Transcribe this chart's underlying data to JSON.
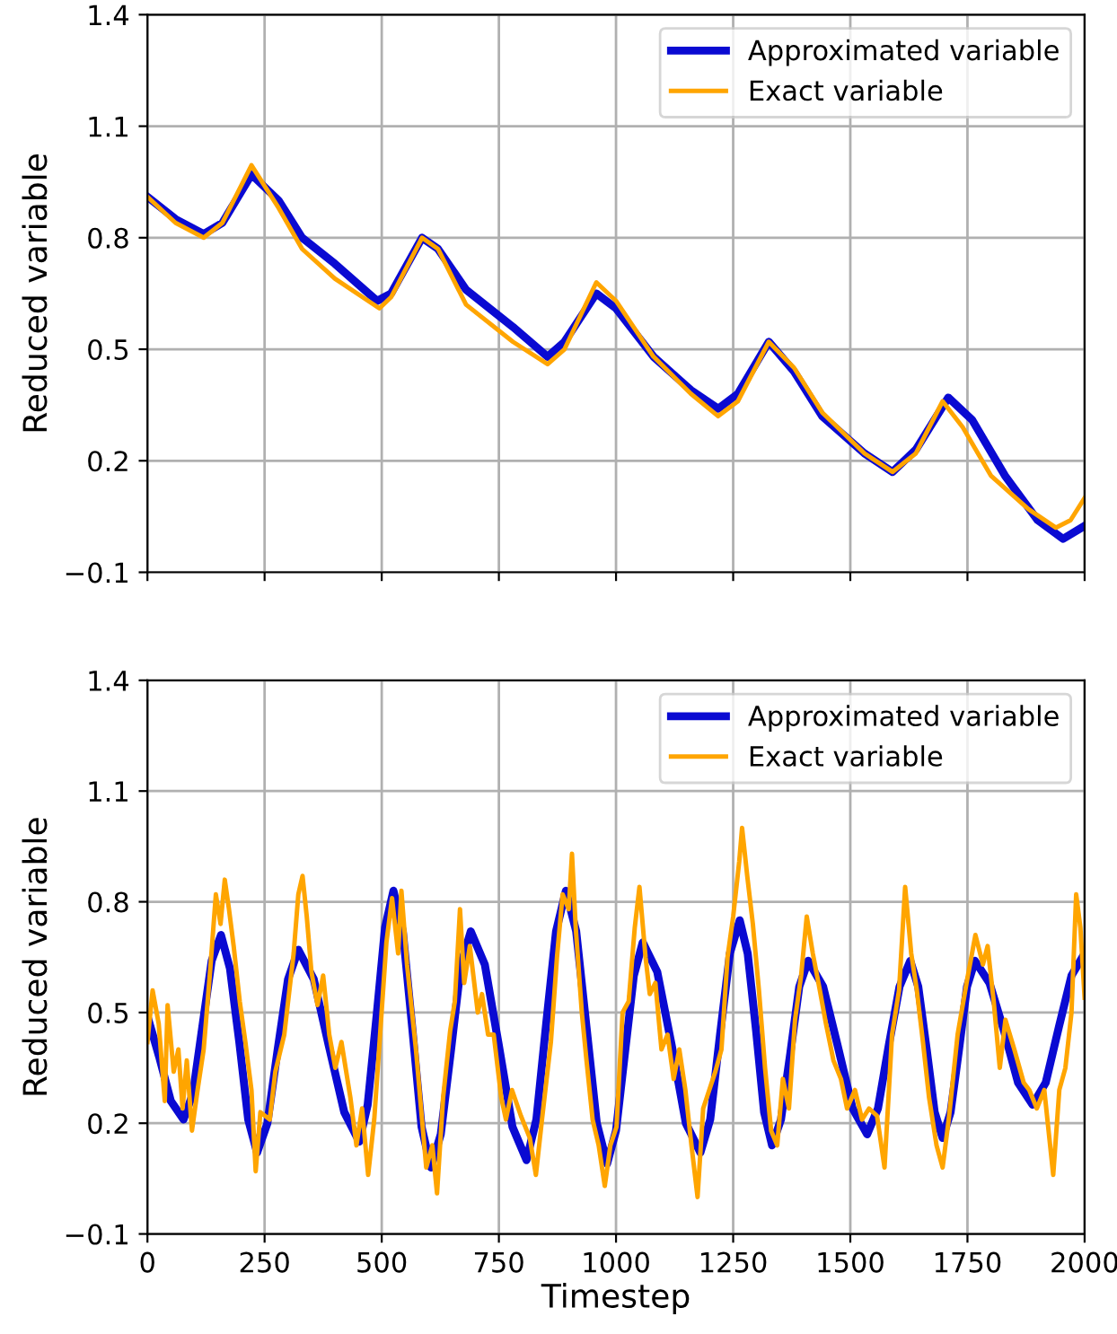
{
  "chart_data": [
    {
      "type": "line",
      "ylabel": "Reduced variable",
      "xlim": [
        0,
        2000
      ],
      "ylim": [
        -0.1,
        1.4
      ],
      "xticks": [
        0,
        250,
        500,
        750,
        1000,
        1250,
        1500,
        1750,
        2000
      ],
      "yticks": [
        {
          "value": -0.1,
          "label": "−0.1"
        },
        0.2,
        0.5,
        0.8,
        1.1,
        1.4
      ],
      "grid": true,
      "legend": "top right",
      "tick_labels": "y",
      "series": [
        {
          "name": "Approximated variable",
          "color": "#0a0ad2",
          "x": [
            0,
            60,
            120,
            160,
            222,
            280,
            330,
            400,
            490,
            520,
            586,
            620,
            680,
            780,
            854,
            890,
            958,
            1000,
            1080,
            1160,
            1218,
            1260,
            1326,
            1380,
            1440,
            1530,
            1590,
            1640,
            1709,
            1760,
            1830,
            1900,
            1954,
            2000
          ],
          "values": [
            0.91,
            0.85,
            0.81,
            0.84,
            0.97,
            0.9,
            0.8,
            0.73,
            0.63,
            0.65,
            0.8,
            0.77,
            0.66,
            0.56,
            0.48,
            0.52,
            0.65,
            0.61,
            0.48,
            0.39,
            0.34,
            0.38,
            0.52,
            0.44,
            0.32,
            0.22,
            0.17,
            0.23,
            0.37,
            0.31,
            0.16,
            0.04,
            -0.01,
            0.025
          ]
        },
        {
          "name": "Exact variable",
          "color": "#ffa500",
          "x": [
            0,
            60,
            120,
            160,
            222,
            280,
            330,
            400,
            495,
            520,
            586,
            620,
            680,
            780,
            854,
            890,
            958,
            1000,
            1080,
            1160,
            1218,
            1260,
            1326,
            1380,
            1440,
            1530,
            1590,
            1640,
            1697,
            1740,
            1800,
            1880,
            1939,
            1970,
            2000
          ],
          "values": [
            0.91,
            0.84,
            0.8,
            0.84,
            0.995,
            0.88,
            0.77,
            0.69,
            0.61,
            0.64,
            0.8,
            0.77,
            0.62,
            0.52,
            0.46,
            0.5,
            0.68,
            0.63,
            0.48,
            0.38,
            0.32,
            0.36,
            0.52,
            0.45,
            0.33,
            0.22,
            0.17,
            0.22,
            0.36,
            0.29,
            0.16,
            0.07,
            0.02,
            0.04,
            0.1
          ]
        }
      ]
    },
    {
      "type": "line",
      "xlabel": "Timestep",
      "ylabel": "Reduced variable",
      "xlim": [
        0,
        2000
      ],
      "ylim": [
        -0.1,
        1.4
      ],
      "xticks": [
        0,
        250,
        500,
        750,
        1000,
        1250,
        1500,
        1750,
        2000
      ],
      "yticks": [
        {
          "value": -0.1,
          "label": "−0.1"
        },
        0.2,
        0.5,
        0.8,
        1.1,
        1.4
      ],
      "grid": true,
      "legend": "top right",
      "series": [
        {
          "name": "Approximated variable",
          "color": "#0a0ad2",
          "x": [
            0,
            25,
            50,
            77,
            97,
            117,
            137,
            157,
            176,
            196,
            215,
            234,
            256,
            278,
            300,
            322,
            355,
            387,
            420,
            452,
            470,
            489,
            507,
            525,
            545,
            565,
            585,
            605,
            626,
            648,
            669,
            690,
            720,
            750,
            779,
            809,
            830,
            851,
            872,
            893,
            915,
            937,
            959,
            981,
            1000,
            1019,
            1038,
            1057,
            1088,
            1119,
            1149,
            1180,
            1201,
            1222,
            1243,
            1264,
            1281,
            1299,
            1316,
            1333,
            1352,
            1372,
            1391,
            1410,
            1442,
            1473,
            1505,
            1536,
            1559,
            1582,
            1605,
            1628,
            1645,
            1663,
            1680,
            1697,
            1714,
            1732,
            1749,
            1766,
            1797,
            1828,
            1858,
            1889,
            1917,
            1945,
            1972,
            2000
          ],
          "values": [
            0.49,
            0.38,
            0.26,
            0.21,
            0.28,
            0.46,
            0.64,
            0.71,
            0.62,
            0.42,
            0.21,
            0.12,
            0.2,
            0.4,
            0.59,
            0.67,
            0.59,
            0.41,
            0.23,
            0.15,
            0.25,
            0.49,
            0.73,
            0.83,
            0.72,
            0.46,
            0.19,
            0.08,
            0.17,
            0.4,
            0.63,
            0.72,
            0.63,
            0.41,
            0.19,
            0.1,
            0.21,
            0.47,
            0.72,
            0.83,
            0.72,
            0.46,
            0.2,
            0.09,
            0.18,
            0.39,
            0.6,
            0.69,
            0.61,
            0.41,
            0.2,
            0.12,
            0.21,
            0.44,
            0.66,
            0.75,
            0.66,
            0.45,
            0.23,
            0.14,
            0.21,
            0.39,
            0.57,
            0.64,
            0.57,
            0.41,
            0.24,
            0.17,
            0.24,
            0.41,
            0.57,
            0.64,
            0.57,
            0.4,
            0.23,
            0.16,
            0.23,
            0.4,
            0.57,
            0.64,
            0.58,
            0.45,
            0.31,
            0.25,
            0.31,
            0.46,
            0.6,
            0.66
          ]
        },
        {
          "name": "Exact variable",
          "color": "#ffa500",
          "x": [
            0,
            11,
            24,
            37,
            43,
            56,
            66,
            75,
            84,
            95,
            107,
            120,
            133,
            146,
            156,
            165,
            174,
            184,
            197,
            209,
            222,
            231,
            241,
            261,
            273,
            292,
            312,
            322,
            331,
            340,
            350,
            363,
            375,
            388,
            401,
            414,
            433,
            446,
            458,
            471,
            484,
            497,
            510,
            522,
            535,
            542,
            554,
            573,
            586,
            595,
            608,
            618,
            631,
            646,
            656,
            667,
            676,
            688,
            705,
            714,
            727,
            739,
            755,
            765,
            778,
            797,
            816,
            829,
            842,
            861,
            874,
            886,
            899,
            906,
            914,
            927,
            937,
            950,
            963,
            976,
            988,
            1001,
            1014,
            1027,
            1040,
            1050,
            1063,
            1072,
            1084,
            1097,
            1110,
            1123,
            1135,
            1148,
            1161,
            1174,
            1186,
            1199,
            1212,
            1225,
            1238,
            1250,
            1263,
            1269,
            1280,
            1292,
            1305,
            1318,
            1331,
            1344,
            1356,
            1369,
            1382,
            1395,
            1407,
            1420,
            1435,
            1448,
            1464,
            1480,
            1493,
            1510,
            1525,
            1540,
            1557,
            1573,
            1589,
            1604,
            1617,
            1630,
            1642,
            1655,
            1668,
            1684,
            1697,
            1710,
            1729,
            1748,
            1767,
            1783,
            1793,
            1806,
            1819,
            1831,
            1850,
            1870,
            1882,
            1898,
            1914,
            1933,
            1946,
            1959,
            1972,
            1982,
            1991,
            2000
          ],
          "values": [
            0.42,
            0.56,
            0.47,
            0.26,
            0.52,
            0.34,
            0.4,
            0.24,
            0.37,
            0.18,
            0.29,
            0.4,
            0.6,
            0.82,
            0.74,
            0.86,
            0.78,
            0.68,
            0.53,
            0.42,
            0.29,
            0.07,
            0.23,
            0.21,
            0.34,
            0.44,
            0.66,
            0.82,
            0.87,
            0.76,
            0.61,
            0.52,
            0.6,
            0.44,
            0.35,
            0.42,
            0.27,
            0.14,
            0.24,
            0.06,
            0.21,
            0.45,
            0.69,
            0.81,
            0.66,
            0.83,
            0.63,
            0.4,
            0.21,
            0.08,
            0.14,
            0.01,
            0.27,
            0.45,
            0.53,
            0.78,
            0.58,
            0.68,
            0.5,
            0.55,
            0.44,
            0.44,
            0.27,
            0.21,
            0.29,
            0.22,
            0.16,
            0.06,
            0.21,
            0.42,
            0.65,
            0.82,
            0.78,
            0.93,
            0.73,
            0.5,
            0.37,
            0.21,
            0.14,
            0.03,
            0.14,
            0.19,
            0.5,
            0.53,
            0.73,
            0.84,
            0.65,
            0.55,
            0.58,
            0.4,
            0.44,
            0.32,
            0.4,
            0.29,
            0.14,
            0.0,
            0.24,
            0.29,
            0.34,
            0.4,
            0.65,
            0.76,
            0.91,
            1.0,
            0.87,
            0.74,
            0.56,
            0.35,
            0.18,
            0.14,
            0.32,
            0.24,
            0.48,
            0.6,
            0.76,
            0.66,
            0.56,
            0.47,
            0.37,
            0.32,
            0.24,
            0.29,
            0.21,
            0.24,
            0.22,
            0.08,
            0.44,
            0.56,
            0.84,
            0.66,
            0.56,
            0.42,
            0.27,
            0.14,
            0.08,
            0.21,
            0.44,
            0.58,
            0.71,
            0.63,
            0.68,
            0.53,
            0.35,
            0.48,
            0.4,
            0.31,
            0.29,
            0.24,
            0.29,
            0.06,
            0.29,
            0.35,
            0.5,
            0.82,
            0.73,
            0.54
          ]
        }
      ]
    }
  ]
}
